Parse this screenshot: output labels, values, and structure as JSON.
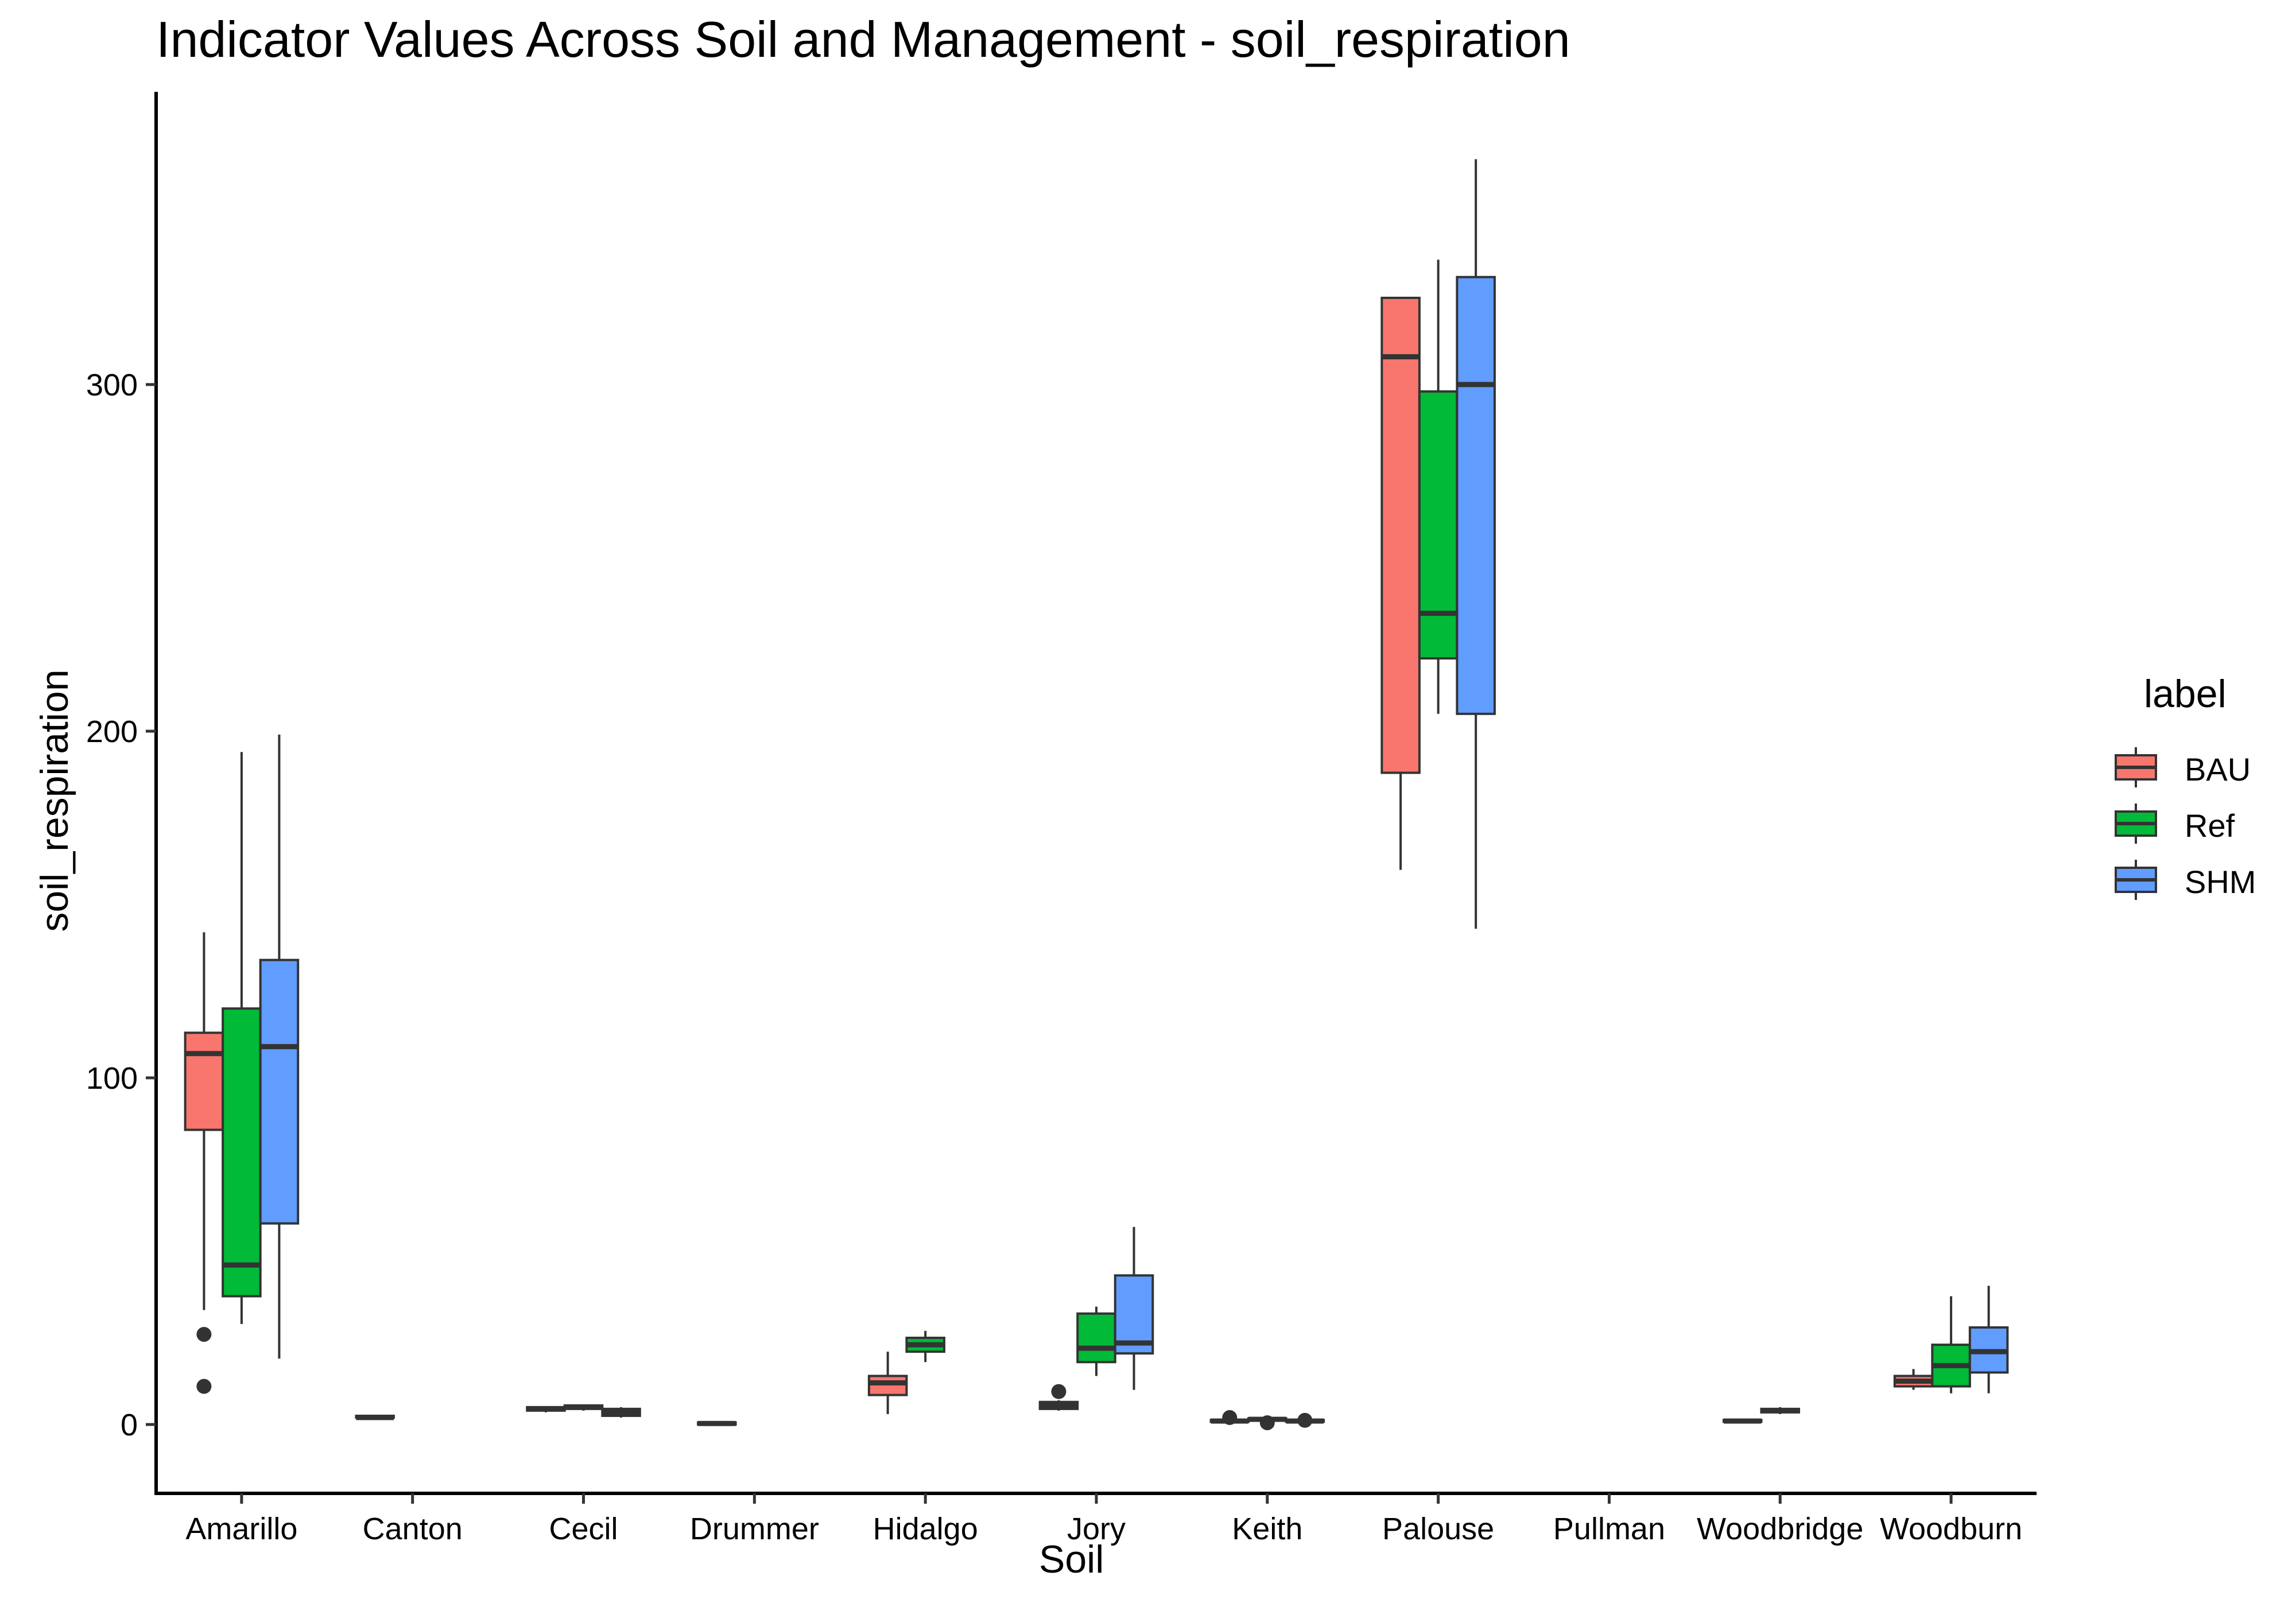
{
  "chart_data": {
    "type": "boxplot",
    "title": "Indicator Values Across Soil and Management - soil_respiration",
    "xlabel": "Soil",
    "ylabel": "soil_respiration",
    "ylim": [
      -18,
      368
    ],
    "yticks": [
      0,
      100,
      200,
      300
    ],
    "grid": false,
    "legend": {
      "title": "label",
      "position": "right"
    },
    "categories": [
      "Amarillo",
      "Canton",
      "Cecil",
      "Drummer",
      "Hidalgo",
      "Jory",
      "Keith",
      "Palouse",
      "Pullman",
      "Woodbridge",
      "Woodburn"
    ],
    "series": [
      {
        "name": "BAU",
        "color": "#F8766D",
        "boxes": [
          {
            "category": "Amarillo",
            "min": 33,
            "q1": 85,
            "median": 107,
            "q3": 113,
            "max": 142,
            "outliers": [
              26,
              11
            ]
          },
          {
            "category": "Canton",
            "min": 2,
            "q1": 2,
            "median": 2,
            "q3": 2.5,
            "max": 2.5,
            "outliers": []
          },
          {
            "category": "Cecil",
            "min": 3.5,
            "q1": 4,
            "median": 4.5,
            "q3": 5,
            "max": 5,
            "outliers": []
          },
          {
            "category": "Drummer",
            "min": 0,
            "q1": 0,
            "median": 0.3,
            "q3": 0.6,
            "max": 0.8,
            "outliers": []
          },
          {
            "category": "Hidalgo",
            "min": 3,
            "q1": 8.5,
            "median": 12,
            "q3": 14,
            "max": 21,
            "outliers": []
          },
          {
            "category": "Jory",
            "min": 4,
            "q1": 4.5,
            "median": 5.5,
            "q3": 6.5,
            "max": 7,
            "outliers": [
              9.5
            ]
          },
          {
            "category": "Keith",
            "min": 0.5,
            "q1": 0.8,
            "median": 1,
            "q3": 1.3,
            "max": 1.6,
            "outliers": [
              2
            ]
          },
          {
            "category": "Palouse",
            "min": 160,
            "q1": 188,
            "median": 308,
            "q3": 325,
            "max": 325,
            "outliers": []
          },
          {
            "category": "Woodbridge",
            "min": 0.5,
            "q1": 0.8,
            "median": 1,
            "q3": 1.3,
            "max": 1.5,
            "outliers": []
          },
          {
            "category": "Woodburn",
            "min": 10,
            "q1": 11,
            "median": 12.5,
            "q3": 14,
            "max": 16,
            "outliers": []
          }
        ]
      },
      {
        "name": "Ref",
        "color": "#00BA38",
        "boxes": [
          {
            "category": "Amarillo",
            "min": 29,
            "q1": 37,
            "median": 46,
            "q3": 120,
            "max": 194,
            "outliers": []
          },
          {
            "category": "Cecil",
            "min": 4,
            "q1": 4.5,
            "median": 5,
            "q3": 5.5,
            "max": 5.8,
            "outliers": []
          },
          {
            "category": "Hidalgo",
            "min": 18,
            "q1": 21,
            "median": 23,
            "q3": 25,
            "max": 27,
            "outliers": []
          },
          {
            "category": "Jory",
            "min": 14,
            "q1": 18,
            "median": 22,
            "q3": 32,
            "max": 34,
            "outliers": []
          },
          {
            "category": "Keith",
            "min": 1,
            "q1": 1.2,
            "median": 1.5,
            "q3": 1.8,
            "max": 2,
            "outliers": [
              0.5
            ]
          },
          {
            "category": "Palouse",
            "min": 205,
            "q1": 221,
            "median": 234,
            "q3": 298,
            "max": 336,
            "outliers": []
          },
          {
            "category": "Woodbridge",
            "min": 3,
            "q1": 3.5,
            "median": 4,
            "q3": 4.5,
            "max": 5,
            "outliers": []
          },
          {
            "category": "Woodburn",
            "min": 9,
            "q1": 11,
            "median": 17,
            "q3": 23,
            "max": 37,
            "outliers": []
          }
        ]
      },
      {
        "name": "SHM",
        "color": "#619CFF",
        "boxes": [
          {
            "category": "Amarillo",
            "min": 19,
            "q1": 58,
            "median": 109,
            "q3": 134,
            "max": 199,
            "outliers": []
          },
          {
            "category": "Cecil",
            "min": 2,
            "q1": 2.5,
            "median": 3.5,
            "q3": 4.5,
            "max": 5,
            "outliers": []
          },
          {
            "category": "Jory",
            "min": 10,
            "q1": 20.5,
            "median": 23.5,
            "q3": 43,
            "max": 57,
            "outliers": []
          },
          {
            "category": "Keith",
            "min": 0.5,
            "q1": 0.8,
            "median": 1,
            "q3": 1.3,
            "max": 1.6,
            "outliers": [
              1.2
            ]
          },
          {
            "category": "Palouse",
            "min": 143,
            "q1": 205,
            "median": 300,
            "q3": 331,
            "max": 365,
            "outliers": []
          },
          {
            "category": "Woodburn",
            "min": 9,
            "q1": 15,
            "median": 21,
            "q3": 28,
            "max": 40,
            "outliers": []
          }
        ]
      }
    ]
  }
}
